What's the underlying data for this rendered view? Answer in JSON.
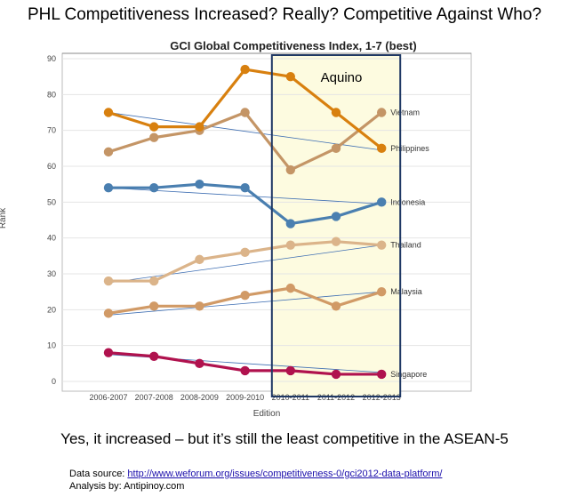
{
  "headline": "PHL Competitiveness Increased? Really?  Competitive Against Who?",
  "caption": "Yes, it increased – but it’s still the least competitive in the ASEAN-5",
  "source": {
    "label": "Data source: ",
    "url_text": "http://www.weforum.org/issues/competitiveness-0/gci2012-data-platform/"
  },
  "analysis": "Analysis by: Antipinoy.com",
  "chart_data": {
    "type": "line",
    "title": "GCI Global Competitiveness Index, 1-7 (best)",
    "xlabel": "Edition",
    "ylabel": "Rank",
    "ylim": [
      0,
      90
    ],
    "yticks": [
      0,
      10,
      20,
      30,
      40,
      50,
      60,
      70,
      80,
      90
    ],
    "categories": [
      "2006-2007",
      "2007-2008",
      "2008-2009",
      "2009-2010",
      "2010-2011",
      "2011-2012",
      "2012-2013"
    ],
    "highlight": {
      "label": "Aquino",
      "from": "2010-2011",
      "to": "2012-2013",
      "fill": "#fdfbe0",
      "stroke": "#1f3864"
    },
    "series": [
      {
        "name": "Vietnam",
        "color": "#c49566",
        "values": [
          64,
          68,
          70,
          75,
          59,
          65,
          75
        ]
      },
      {
        "name": "Philippines",
        "color": "#d8800f",
        "values": [
          75,
          71,
          71,
          87,
          85,
          75,
          65
        ]
      },
      {
        "name": "Indonesia",
        "color": "#4a7fb0",
        "values": [
          54,
          54,
          55,
          54,
          44,
          46,
          50
        ]
      },
      {
        "name": "Thailand",
        "color": "#dbb48a",
        "values": [
          28,
          28,
          34,
          36,
          38,
          39,
          38
        ]
      },
      {
        "name": "Malaysia",
        "color": "#d19a66",
        "values": [
          19,
          21,
          21,
          24,
          26,
          21,
          25
        ]
      },
      {
        "name": "Singapore",
        "color": "#b0124e",
        "values": [
          8,
          7,
          5,
          3,
          3,
          2,
          2
        ]
      }
    ],
    "trendlines": [
      {
        "series": "Philippines",
        "from": 75,
        "to": 64.5
      },
      {
        "series": "Indonesia",
        "from": 54,
        "to": 49.5
      },
      {
        "series": "Thailand",
        "from": 27.5,
        "to": 38
      },
      {
        "series": "Malaysia",
        "from": 18.5,
        "to": 25
      },
      {
        "series": "Singapore",
        "from": 7.5,
        "to": 2.5
      }
    ],
    "trendline_color": "#3f6fb3"
  }
}
